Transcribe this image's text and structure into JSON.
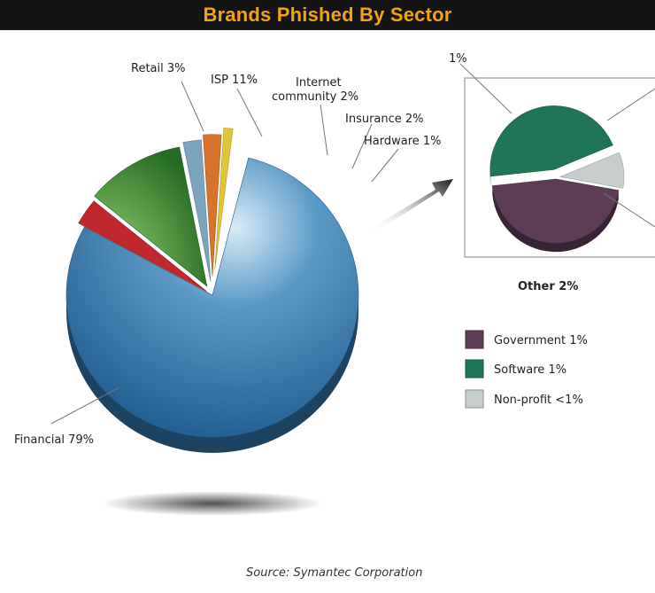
{
  "title": "Brands Phished By Sector",
  "source": "Source: Symantec Corporation",
  "colors": {
    "financial": "#2f6fa3",
    "retail": "#c0282e",
    "isp": "#2e7d2c",
    "internet_community": "#7aa3bd",
    "insurance": "#d7732a",
    "hardware": "#e0c43a",
    "government": "#5e3c56",
    "software": "#1e7558",
    "non_profit": "#c7cccc"
  },
  "chart_data": [
    {
      "type": "pie",
      "title": "Brands Phished By Sector",
      "slices": [
        {
          "key": "financial",
          "label": "Financial 79%",
          "value": 79
        },
        {
          "key": "retail",
          "label": "Retail 3%",
          "value": 3
        },
        {
          "key": "isp",
          "label": "ISP 11%",
          "value": 11
        },
        {
          "key": "internet_community",
          "label_lines": [
            "Internet",
            "community 2%"
          ],
          "value": 2
        },
        {
          "key": "insurance",
          "label": "Insurance 2%",
          "value": 2
        },
        {
          "key": "hardware",
          "label": "Hardware 1%",
          "value": 1
        },
        {
          "key": "other",
          "label": "Other 2%",
          "value": 2
        }
      ]
    },
    {
      "type": "pie",
      "title": "Other 2%",
      "legend": "right",
      "slices": [
        {
          "key": "government",
          "label": "Government 1%",
          "value": 1
        },
        {
          "key": "software",
          "label": "Software 1%",
          "value": 1
        },
        {
          "key": "non_profit",
          "label": "Non-profit <1%",
          "value": 0.2
        }
      ],
      "slice_callout": "1%"
    }
  ]
}
